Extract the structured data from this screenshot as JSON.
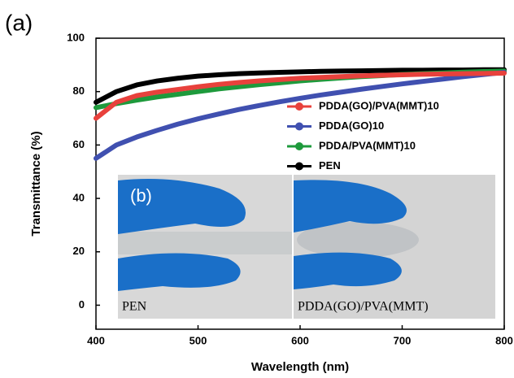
{
  "chart_data": {
    "type": "line",
    "x_label": "Wavelength (nm)",
    "y_label": "Transmittance (%)",
    "annotations": [
      "(a)",
      "(b)",
      "PEN",
      "PDDA(GO)/PVA(MMT)"
    ],
    "x": [
      400,
      420,
      440,
      460,
      480,
      500,
      520,
      540,
      560,
      580,
      600,
      620,
      640,
      660,
      680,
      700,
      720,
      740,
      760,
      780,
      800
    ],
    "series": [
      {
        "name": "PDDA(GO)/PVA(MMT)10",
        "color": "#e8413c",
        "values": [
          70,
          76,
          78.5,
          79.8,
          80.8,
          81.8,
          82.7,
          83.4,
          84,
          84.5,
          85,
          85.3,
          85.6,
          85.9,
          86.1,
          86.3,
          86.5,
          86.6,
          86.7,
          86.8,
          86.9
        ]
      },
      {
        "name": "PDDA(GO)10",
        "color": "#4050b0",
        "values": [
          55,
          60,
          63,
          65.5,
          67.8,
          69.8,
          71.6,
          73.3,
          74.8,
          76.2,
          77.5,
          78.7,
          79.8,
          80.9,
          81.9,
          82.9,
          83.8,
          84.7,
          85.6,
          86.4,
          87.2
        ]
      },
      {
        "name": "PDDA/PVA(MMT)10",
        "color": "#1e9a3c",
        "values": [
          74,
          75.5,
          76.8,
          78,
          79,
          80,
          81,
          81.8,
          82.6,
          83.3,
          84,
          84.6,
          85.1,
          85.6,
          86,
          86.4,
          86.7,
          87,
          87.3,
          87.5,
          87.7
        ]
      },
      {
        "name": "PEN",
        "color": "#000000",
        "values": [
          76,
          80,
          82.5,
          84,
          85,
          85.8,
          86.3,
          86.7,
          87,
          87.2,
          87.4,
          87.6,
          87.7,
          87.8,
          87.9,
          88,
          88,
          88.1,
          88.1,
          88.2,
          88.2
        ]
      }
    ],
    "xlim": [
      400,
      800
    ],
    "xticks": [
      400,
      500,
      600,
      700,
      800
    ],
    "ylim": [
      -9,
      100
    ],
    "yticks": [
      0,
      20,
      40,
      60,
      80,
      100
    ]
  }
}
